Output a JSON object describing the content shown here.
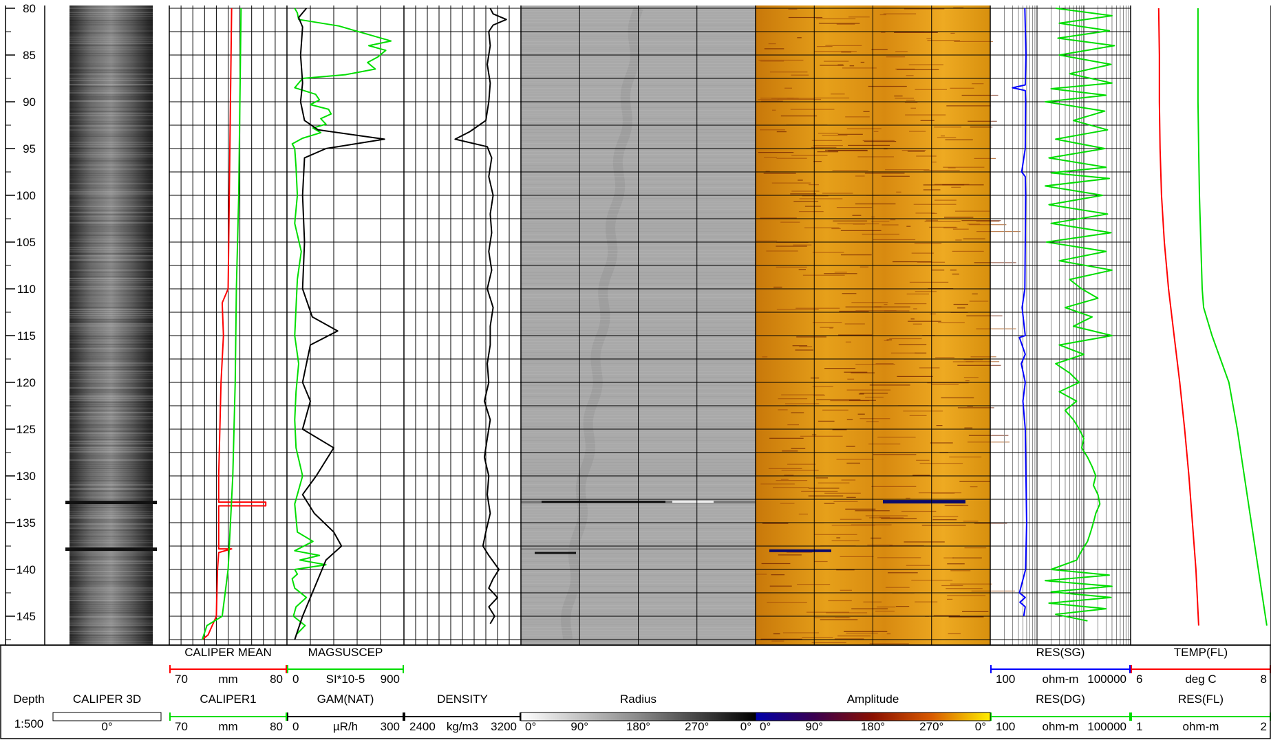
{
  "chart_data": {
    "type": "line",
    "title": "",
    "depth_axis": {
      "label": "Depth",
      "scale": "1:500",
      "range": [
        80,
        148
      ],
      "ticks": [
        80,
        85,
        90,
        95,
        100,
        105,
        110,
        115,
        120,
        125,
        130,
        135,
        140,
        145
      ]
    },
    "tracks": [
      {
        "id": "caliper3d",
        "header": "CALIPER 3D",
        "bar_label": "0°",
        "kind": "image"
      },
      {
        "id": "caliper",
        "kind": "curves",
        "scale": "linear",
        "curves": [
          {
            "name": "CALIPER MEAN",
            "color": "#ff0000",
            "min": "70",
            "unit": "mm",
            "max": "80",
            "xmin": 70,
            "xmax": 80
          },
          {
            "name": "CALIPER1",
            "color": "#00dd00",
            "min": "70",
            "unit": "mm",
            "max": "80",
            "xmin": 70,
            "xmax": 80
          }
        ]
      },
      {
        "id": "mag",
        "kind": "curves",
        "scale": "linear",
        "curves": [
          {
            "name": "MAGSUSCEP",
            "color": "#00dd00",
            "min": "0",
            "unit": "SI*10-5",
            "max": "900",
            "xmin": 0,
            "xmax": 900
          },
          {
            "name": "GAM(NAT)",
            "color": "#000000",
            "min": "0",
            "unit": "µR/h",
            "max": "300",
            "xmin": 0,
            "xmax": 300
          }
        ]
      },
      {
        "id": "density",
        "kind": "curves",
        "scale": "linear",
        "curves": [
          {
            "name": "DENSITY",
            "color": "#000000",
            "min": "2400",
            "unit": "kg/m3",
            "max": "3200",
            "xmin": 2400,
            "xmax": 3200
          }
        ]
      },
      {
        "id": "radius",
        "header": "Radius",
        "kind": "image",
        "palette": "gray",
        "angles": [
          "0°",
          "90°",
          "180°",
          "270°",
          "0°"
        ]
      },
      {
        "id": "amplitude",
        "header": "Amplitude",
        "kind": "image",
        "palette": "heat",
        "angles": [
          "0°",
          "90°",
          "180°",
          "270°",
          "0°"
        ]
      },
      {
        "id": "res",
        "kind": "curves",
        "scale": "log",
        "curves": [
          {
            "name": "RES(SG)",
            "color": "#0000ff",
            "min": "100",
            "unit": "ohm-m",
            "max": "100000",
            "xmin": 100,
            "xmax": 100000
          },
          {
            "name": "RES(DG)",
            "color": "#00dd00",
            "min": "100",
            "unit": "ohm-m",
            "max": "100000",
            "xmin": 100,
            "xmax": 100000
          }
        ]
      },
      {
        "id": "temp",
        "kind": "curves",
        "scale": "linear",
        "curves": [
          {
            "name": "TEMP(FL)",
            "color": "#ff0000",
            "min": "6",
            "unit": "deg C",
            "max": "8",
            "xmin": 6,
            "xmax": 8
          },
          {
            "name": "RES(FL)",
            "color": "#00dd00",
            "min": "1",
            "unit": "ohm-m",
            "max": "2",
            "xmin": 1,
            "xmax": 2
          }
        ]
      }
    ],
    "series": [
      {
        "name": "CALIPER MEAN",
        "track": "caliper",
        "depth": [
          80,
          90,
          100,
          110,
          111.5,
          115,
          120,
          125,
          130,
          132.8,
          132.8,
          133.2,
          133.2,
          137.8,
          137.8,
          138.2,
          140,
          145,
          147,
          147.5
        ],
        "values": [
          75.3,
          75.2,
          75.1,
          75.0,
          74.5,
          74.6,
          74.4,
          74.3,
          74.2,
          74.2,
          78.2,
          78.2,
          74.2,
          74.2,
          75.3,
          74.2,
          74.1,
          74.0,
          73.3,
          72.8
        ]
      },
      {
        "name": "CALIPER1",
        "track": "caliper",
        "depth": [
          80,
          90,
          100,
          110,
          120,
          130,
          140,
          145,
          146,
          147.5
        ],
        "values": [
          76.1,
          76.0,
          75.9,
          75.7,
          75.6,
          75.4,
          75.0,
          74.5,
          73.2,
          72.8
        ]
      },
      {
        "name": "MAGSUSCEP",
        "track": "mag",
        "depth": [
          80,
          80.5,
          81.2,
          81.9,
          82.3,
          82.9,
          83.5,
          84,
          84.5,
          85.2,
          85.8,
          86.5,
          87.1,
          87.5,
          88.5,
          89.2,
          89.8,
          90.3,
          90.8,
          91.3,
          91.8,
          92.4,
          92.8,
          93.3,
          93.9,
          94.5,
          95,
          97,
          100,
          103,
          106,
          109,
          112,
          115,
          118,
          121,
          124,
          127,
          130,
          133,
          136,
          137,
          138,
          138.5,
          139,
          139.5,
          140,
          140.5,
          141,
          142,
          143,
          144,
          145,
          146,
          147
        ],
        "values": [
          60,
          80,
          90,
          400,
          500,
          650,
          800,
          630,
          760,
          700,
          620,
          680,
          450,
          120,
          60,
          220,
          250,
          180,
          320,
          340,
          260,
          300,
          200,
          260,
          120,
          40,
          60,
          70,
          80,
          60,
          110,
          80,
          70,
          60,
          90,
          70,
          60,
          70,
          120,
          60,
          80,
          200,
          60,
          250,
          100,
          300,
          60,
          80,
          40,
          60,
          150,
          70,
          50,
          140,
          70
        ]
      },
      {
        "name": "GAM(NAT)",
        "track": "mag",
        "depth": [
          80,
          81,
          82,
          85,
          88,
          90,
          92,
          93,
          94,
          95,
          96,
          100,
          105,
          110,
          113,
          114.5,
          116,
          120,
          122,
          125,
          127,
          130,
          132,
          134,
          136,
          137.5,
          139,
          142,
          145,
          147.5
        ],
        "values": [
          50,
          30,
          40,
          35,
          40,
          35,
          45,
          80,
          250,
          100,
          45,
          40,
          45,
          40,
          65,
          130,
          60,
          40,
          60,
          40,
          120,
          75,
          40,
          70,
          120,
          140,
          100,
          70,
          40,
          20
        ]
      },
      {
        "name": "DENSITY",
        "track": "density",
        "depth": [
          80,
          80.6,
          81.2,
          81.8,
          82.5,
          84,
          86,
          88,
          90,
          92,
          93.2,
          94,
          94.8,
          96,
          98,
          100,
          102,
          104,
          106,
          108,
          110,
          112,
          114,
          116,
          118,
          120,
          122,
          124,
          126,
          128,
          130,
          132,
          134,
          136,
          137.5,
          138.5,
          140,
          141,
          142,
          143,
          144,
          145,
          145.8
        ],
        "values": [
          2990,
          3010,
          3100,
          3010,
          2980,
          2990,
          2970,
          2990,
          2980,
          2960,
          2850,
          2750,
          2970,
          3000,
          2980,
          3010,
          2990,
          3000,
          2980,
          3000,
          2970,
          3010,
          2990,
          2990,
          2970,
          2980,
          2950,
          2990,
          2970,
          2950,
          2980,
          2970,
          2990,
          2960,
          2940,
          2980,
          3050,
          3010,
          2980,
          3040,
          2980,
          3020,
          2990
        ]
      },
      {
        "name": "RES(SG)",
        "track": "res",
        "depth": [
          80,
          85,
          88.2,
          88.5,
          88.8,
          90,
          95,
          97.5,
          98,
          100,
          105,
          110,
          112,
          115,
          115.2,
          117,
          118,
          120,
          122,
          125,
          130,
          135,
          140,
          142.5,
          143,
          143.5,
          144,
          145
        ],
        "values": [
          550,
          580,
          560,
          300,
          560,
          570,
          560,
          470,
          560,
          570,
          560,
          550,
          480,
          560,
          420,
          560,
          460,
          560,
          500,
          560,
          580,
          600,
          570,
          420,
          560,
          430,
          560,
          520
        ]
      },
      {
        "name": "RES(DG)",
        "track": "res",
        "depth": [
          80,
          80.8,
          81.6,
          82.4,
          83.2,
          84,
          85,
          86,
          87,
          88,
          88.6,
          89.3,
          90,
          91,
          92,
          93,
          94,
          95,
          96,
          97,
          97.6,
          98.2,
          99,
          100,
          101,
          102,
          103,
          104,
          105,
          106,
          107,
          108,
          109,
          110,
          111,
          112,
          113,
          114,
          115,
          116,
          117,
          118,
          119,
          120,
          121,
          122,
          123,
          124,
          125,
          126,
          127,
          128,
          129,
          130,
          131,
          132,
          133,
          134,
          135,
          136,
          137,
          138,
          139,
          140,
          140.6,
          141.2,
          141.8,
          142.4,
          143,
          143.6,
          144.2,
          144.8,
          145.5
        ],
        "values": [
          2500,
          40000,
          3000,
          35000,
          2800,
          45000,
          3000,
          38000,
          5000,
          40000,
          2000,
          30000,
          1500,
          28000,
          6000,
          32000,
          2500,
          28000,
          1800,
          30000,
          2000,
          35000,
          1500,
          25000,
          1800,
          32000,
          2000,
          38000,
          1600,
          30000,
          3000,
          40000,
          5000,
          9000,
          20000,
          4000,
          15000,
          6000,
          40000,
          3000,
          10000,
          2500,
          5000,
          8000,
          3000,
          7000,
          4000,
          6000,
          8000,
          10000,
          9000,
          12000,
          15000,
          18000,
          16000,
          20000,
          22000,
          18000,
          16000,
          14000,
          12000,
          9000,
          7000,
          2000,
          35000,
          1500,
          40000,
          2000,
          38000,
          1800,
          30000,
          2500,
          12000
        ]
      },
      {
        "name": "TEMP(FL)",
        "track": "temp",
        "depth": [
          80,
          85,
          90,
          95,
          100,
          105,
          110,
          115,
          120,
          125,
          130,
          135,
          140,
          146
        ],
        "values": [
          6.4,
          6.41,
          6.41,
          6.42,
          6.44,
          6.48,
          6.54,
          6.62,
          6.7,
          6.77,
          6.83,
          6.88,
          6.93,
          6.97
        ]
      },
      {
        "name": "RES(FL)",
        "track": "temp",
        "depth": [
          80,
          85,
          90,
          95,
          100,
          105,
          110,
          112,
          115,
          120,
          125,
          130,
          135,
          140,
          146
        ],
        "values": [
          1.48,
          1.48,
          1.48,
          1.485,
          1.49,
          1.5,
          1.51,
          1.52,
          1.58,
          1.7,
          1.76,
          1.81,
          1.86,
          1.91,
          1.97
        ]
      }
    ]
  }
}
